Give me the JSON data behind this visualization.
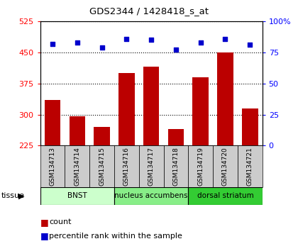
{
  "title": "GDS2344 / 1428418_s_at",
  "samples": [
    "GSM134713",
    "GSM134714",
    "GSM134715",
    "GSM134716",
    "GSM134717",
    "GSM134718",
    "GSM134719",
    "GSM134720",
    "GSM134721"
  ],
  "counts": [
    335,
    295,
    270,
    400,
    415,
    265,
    390,
    450,
    315
  ],
  "percentiles": [
    82,
    83,
    79,
    86,
    85,
    77,
    83,
    86,
    81
  ],
  "ylim_left": [
    225,
    525
  ],
  "ylim_right": [
    0,
    100
  ],
  "yticks_left": [
    225,
    300,
    375,
    450,
    525
  ],
  "yticks_right": [
    0,
    25,
    50,
    75,
    100
  ],
  "bar_color": "#bb0000",
  "dot_color": "#0000cc",
  "grid_color": "#000000",
  "tissue_groups": [
    {
      "label": "BNST",
      "start": 0,
      "end": 3,
      "color": "#ccffcc"
    },
    {
      "label": "nucleus accumbens",
      "start": 3,
      "end": 6,
      "color": "#88ee88"
    },
    {
      "label": "dorsal striatum",
      "start": 6,
      "end": 9,
      "color": "#33cc33"
    }
  ],
  "tissue_label": "tissue",
  "legend_count_color": "#bb0000",
  "legend_pct_color": "#0000cc",
  "legend_count_label": "count",
  "legend_pct_label": "percentile rank within the sample",
  "bar_width": 0.65,
  "tick_bg_color": "#cccccc"
}
